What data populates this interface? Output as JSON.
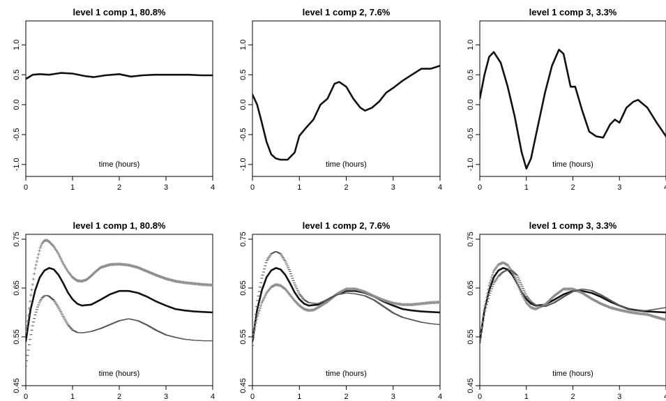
{
  "chart_data": [
    {
      "type": "line",
      "title": "level 1 comp 1, 80.8%",
      "xlabel": "time (hours)",
      "xlim": [
        0,
        4
      ],
      "ylim": [
        -1.2,
        1.4
      ],
      "xticks": [
        0,
        1,
        2,
        3,
        4
      ],
      "yticks": [
        -1.0,
        -0.5,
        0.0,
        0.5,
        1.0
      ],
      "ytick_labels": [
        "-1.0",
        "-0.5",
        "0.0",
        "0.5",
        "1.0"
      ],
      "series": [
        {
          "style": "solid-black",
          "x": [
            0,
            0.15,
            0.3,
            0.5,
            0.75,
            1.0,
            1.25,
            1.45,
            1.7,
            2.0,
            2.25,
            2.5,
            2.75,
            3.0,
            3.25,
            3.5,
            3.75,
            4.0
          ],
          "y": [
            0.43,
            0.5,
            0.51,
            0.5,
            0.53,
            0.52,
            0.48,
            0.46,
            0.49,
            0.51,
            0.47,
            0.49,
            0.5,
            0.5,
            0.5,
            0.5,
            0.49,
            0.49
          ]
        }
      ]
    },
    {
      "type": "line",
      "title": "level 1 comp 2, 7.6%",
      "xlabel": "time (hours)",
      "xlim": [
        0,
        4
      ],
      "ylim": [
        -1.2,
        1.4
      ],
      "xticks": [
        0,
        1,
        2,
        3,
        4
      ],
      "yticks": [
        -1.0,
        -0.5,
        0.0,
        0.5,
        1.0
      ],
      "ytick_labels": [
        "-1.0",
        "-0.5",
        "0.0",
        "0.5",
        "1.0"
      ],
      "series": [
        {
          "style": "solid-black",
          "x": [
            0,
            0.1,
            0.2,
            0.3,
            0.4,
            0.5,
            0.6,
            0.75,
            0.9,
            1.0,
            1.15,
            1.3,
            1.45,
            1.6,
            1.75,
            1.85,
            2.0,
            2.15,
            2.3,
            2.4,
            2.55,
            2.7,
            2.85,
            3.0,
            3.2,
            3.4,
            3.6,
            3.8,
            4.0
          ],
          "y": [
            0.17,
            0.0,
            -0.3,
            -0.62,
            -0.83,
            -0.9,
            -0.92,
            -0.92,
            -0.8,
            -0.52,
            -0.38,
            -0.25,
            0.0,
            0.1,
            0.35,
            0.38,
            0.3,
            0.1,
            -0.05,
            -0.1,
            -0.05,
            0.05,
            0.2,
            0.28,
            0.4,
            0.5,
            0.6,
            0.6,
            0.65
          ]
        }
      ]
    },
    {
      "type": "line",
      "title": "level 1 comp 3, 3.3%",
      "xlabel": "time (hours)",
      "xlim": [
        0,
        4
      ],
      "ylim": [
        -1.2,
        1.4
      ],
      "xticks": [
        0,
        1,
        2,
        3,
        4
      ],
      "yticks": [
        -1.0,
        -0.5,
        0.0,
        0.5,
        1.0
      ],
      "ytick_labels": [
        "-1.0",
        "-0.5",
        "0.0",
        "0.5",
        "1.0"
      ],
      "series": [
        {
          "style": "solid-black",
          "x": [
            0,
            0.1,
            0.2,
            0.3,
            0.45,
            0.6,
            0.75,
            0.9,
            1.0,
            1.1,
            1.25,
            1.4,
            1.55,
            1.7,
            1.8,
            1.95,
            2.05,
            2.2,
            2.35,
            2.5,
            2.65,
            2.8,
            2.9,
            3.0,
            3.15,
            3.3,
            3.4,
            3.6,
            3.8,
            4.0
          ],
          "y": [
            0.1,
            0.5,
            0.8,
            0.88,
            0.7,
            0.3,
            -0.2,
            -0.8,
            -1.07,
            -0.9,
            -0.35,
            0.2,
            0.65,
            0.92,
            0.85,
            0.3,
            0.3,
            -0.1,
            -0.45,
            -0.53,
            -0.55,
            -0.33,
            -0.25,
            -0.3,
            -0.05,
            0.05,
            0.08,
            -0.05,
            -0.3,
            -0.53
          ]
        }
      ]
    },
    {
      "type": "line",
      "title": "level 1 comp 1, 80.8%",
      "xlabel": "time (hours)",
      "xlim": [
        0,
        4
      ],
      "ylim": [
        0.45,
        0.76
      ],
      "xticks": [
        0,
        1,
        2,
        3,
        4
      ],
      "yticks": [
        0.45,
        0.55,
        0.65,
        0.75
      ],
      "ytick_labels": [
        "0.45",
        "0.55",
        "0.65",
        "0.75"
      ],
      "series": [
        {
          "style": "solid-black",
          "x": [
            0,
            0.1,
            0.2,
            0.3,
            0.4,
            0.5,
            0.6,
            0.7,
            0.8,
            0.9,
            1.0,
            1.1,
            1.2,
            1.4,
            1.6,
            1.8,
            2.0,
            2.2,
            2.4,
            2.6,
            2.8,
            3.0,
            3.2,
            3.4,
            3.6,
            3.8,
            4.0
          ],
          "y": [
            0.541,
            0.605,
            0.645,
            0.672,
            0.686,
            0.691,
            0.688,
            0.677,
            0.66,
            0.641,
            0.627,
            0.618,
            0.614,
            0.616,
            0.626,
            0.637,
            0.644,
            0.644,
            0.64,
            0.632,
            0.622,
            0.614,
            0.607,
            0.604,
            0.602,
            0.601,
            0.6
          ]
        },
        {
          "style": "plus-gray",
          "x": [
            0,
            0.05,
            0.1,
            0.15,
            0.2,
            0.25,
            0.3,
            0.35,
            0.4,
            0.45,
            0.5,
            0.6,
            0.7,
            0.8,
            0.9,
            1.0,
            1.1,
            1.2,
            1.3,
            1.4,
            1.5,
            1.6,
            1.8,
            2.0,
            2.2,
            2.4,
            2.6,
            2.8,
            3.0,
            3.2,
            3.4,
            3.6,
            3.8,
            4.0
          ],
          "y": [
            0.56,
            0.59,
            0.63,
            0.66,
            0.69,
            0.71,
            0.73,
            0.742,
            0.747,
            0.748,
            0.745,
            0.735,
            0.72,
            0.7,
            0.684,
            0.672,
            0.665,
            0.664,
            0.667,
            0.675,
            0.684,
            0.692,
            0.698,
            0.699,
            0.697,
            0.692,
            0.684,
            0.676,
            0.669,
            0.664,
            0.661,
            0.659,
            0.657,
            0.656
          ]
        },
        {
          "style": "minus-gray",
          "x": [
            0,
            0.05,
            0.1,
            0.15,
            0.2,
            0.25,
            0.3,
            0.35,
            0.4,
            0.45,
            0.5,
            0.6,
            0.7,
            0.8,
            0.9,
            1.0,
            1.1,
            1.2,
            1.4,
            1.6,
            1.8,
            2.0,
            2.2,
            2.4,
            2.6,
            2.8,
            3.0,
            3.2,
            3.4,
            3.6,
            3.8,
            4.0
          ],
          "y": [
            0.49,
            0.52,
            0.55,
            0.575,
            0.595,
            0.61,
            0.622,
            0.63,
            0.634,
            0.635,
            0.633,
            0.625,
            0.61,
            0.592,
            0.575,
            0.564,
            0.559,
            0.558,
            0.561,
            0.567,
            0.575,
            0.583,
            0.587,
            0.583,
            0.574,
            0.563,
            0.554,
            0.549,
            0.545,
            0.543,
            0.542,
            0.542
          ]
        }
      ]
    },
    {
      "type": "line",
      "title": "level 1 comp 2, 7.6%",
      "xlabel": "time (hours)",
      "xlim": [
        0,
        4
      ],
      "ylim": [
        0.45,
        0.76
      ],
      "xticks": [
        0,
        1,
        2,
        3,
        4
      ],
      "yticks": [
        0.45,
        0.55,
        0.65,
        0.75
      ],
      "ytick_labels": [
        "0.45",
        "0.55",
        "0.65",
        "0.75"
      ],
      "series": [
        {
          "style": "solid-black",
          "x": [
            0,
            0.1,
            0.2,
            0.3,
            0.4,
            0.5,
            0.6,
            0.7,
            0.8,
            0.9,
            1.0,
            1.1,
            1.2,
            1.4,
            1.6,
            1.8,
            2.0,
            2.2,
            2.4,
            2.6,
            2.8,
            3.0,
            3.2,
            3.4,
            3.6,
            3.8,
            4.0
          ],
          "y": [
            0.541,
            0.605,
            0.645,
            0.672,
            0.686,
            0.691,
            0.688,
            0.677,
            0.66,
            0.641,
            0.627,
            0.618,
            0.614,
            0.616,
            0.626,
            0.637,
            0.644,
            0.644,
            0.64,
            0.632,
            0.622,
            0.614,
            0.607,
            0.604,
            0.602,
            0.601,
            0.6
          ]
        },
        {
          "style": "plus-gray",
          "x": [
            0,
            0.1,
            0.2,
            0.3,
            0.4,
            0.5,
            0.6,
            0.7,
            0.8,
            0.9,
            1.0,
            1.1,
            1.2,
            1.3,
            1.4,
            1.6,
            1.8,
            2.0,
            2.2,
            2.4,
            2.6,
            2.8,
            3.0,
            3.2,
            3.4,
            3.6,
            3.8,
            4.0
          ],
          "y": [
            0.548,
            0.59,
            0.62,
            0.64,
            0.652,
            0.657,
            0.655,
            0.648,
            0.636,
            0.624,
            0.614,
            0.607,
            0.604,
            0.605,
            0.61,
            0.622,
            0.638,
            0.648,
            0.648,
            0.642,
            0.633,
            0.625,
            0.619,
            0.616,
            0.616,
            0.618,
            0.62,
            0.621
          ]
        },
        {
          "style": "minus-gray",
          "x": [
            0,
            0.1,
            0.2,
            0.3,
            0.4,
            0.5,
            0.6,
            0.7,
            0.8,
            0.9,
            1.0,
            1.1,
            1.2,
            1.4,
            1.6,
            1.8,
            2.0,
            2.2,
            2.4,
            2.6,
            2.8,
            3.0,
            3.2,
            3.4,
            3.6,
            3.8,
            4.0
          ],
          "y": [
            0.532,
            0.62,
            0.67,
            0.705,
            0.72,
            0.725,
            0.72,
            0.705,
            0.684,
            0.658,
            0.638,
            0.626,
            0.62,
            0.618,
            0.626,
            0.636,
            0.64,
            0.638,
            0.634,
            0.625,
            0.612,
            0.599,
            0.59,
            0.585,
            0.58,
            0.577,
            0.575
          ]
        }
      ]
    },
    {
      "type": "line",
      "title": "level 1 comp 3, 3.3%",
      "xlabel": "time (hours)",
      "xlim": [
        0,
        4
      ],
      "ylim": [
        0.45,
        0.76
      ],
      "xticks": [
        0,
        1,
        2,
        3,
        4
      ],
      "yticks": [
        0.45,
        0.55,
        0.65,
        0.75
      ],
      "ytick_labels": [
        "0.45",
        "0.55",
        "0.65",
        "0.75"
      ],
      "series": [
        {
          "style": "solid-black",
          "x": [
            0,
            0.1,
            0.2,
            0.3,
            0.4,
            0.5,
            0.6,
            0.7,
            0.8,
            0.9,
            1.0,
            1.1,
            1.2,
            1.4,
            1.6,
            1.8,
            2.0,
            2.2,
            2.4,
            2.6,
            2.8,
            3.0,
            3.2,
            3.4,
            3.6,
            3.8,
            4.0
          ],
          "y": [
            0.541,
            0.605,
            0.645,
            0.672,
            0.686,
            0.691,
            0.688,
            0.677,
            0.66,
            0.641,
            0.627,
            0.618,
            0.614,
            0.616,
            0.626,
            0.637,
            0.644,
            0.644,
            0.64,
            0.632,
            0.622,
            0.614,
            0.607,
            0.604,
            0.602,
            0.601,
            0.6
          ]
        },
        {
          "style": "plus-gray",
          "x": [
            0,
            0.1,
            0.2,
            0.3,
            0.4,
            0.5,
            0.6,
            0.7,
            0.8,
            0.9,
            1.0,
            1.1,
            1.2,
            1.4,
            1.6,
            1.8,
            2.0,
            2.2,
            2.4,
            2.6,
            2.8,
            3.0,
            3.2,
            3.4,
            3.6,
            3.8,
            4.0
          ],
          "y": [
            0.545,
            0.61,
            0.655,
            0.685,
            0.698,
            0.702,
            0.697,
            0.683,
            0.662,
            0.638,
            0.62,
            0.61,
            0.607,
            0.616,
            0.634,
            0.648,
            0.648,
            0.64,
            0.628,
            0.618,
            0.61,
            0.605,
            0.601,
            0.598,
            0.596,
            0.59,
            0.585
          ]
        },
        {
          "style": "minus-gray",
          "x": [
            0,
            0.1,
            0.2,
            0.3,
            0.4,
            0.5,
            0.6,
            0.7,
            0.8,
            0.9,
            1.0,
            1.1,
            1.2,
            1.4,
            1.6,
            1.8,
            2.0,
            2.2,
            2.4,
            2.6,
            2.8,
            3.0,
            3.2,
            3.4,
            3.6,
            3.8,
            4.0
          ],
          "y": [
            0.538,
            0.6,
            0.635,
            0.66,
            0.674,
            0.683,
            0.687,
            0.685,
            0.676,
            0.655,
            0.634,
            0.622,
            0.615,
            0.612,
            0.62,
            0.632,
            0.643,
            0.648,
            0.645,
            0.636,
            0.625,
            0.614,
            0.606,
            0.603,
            0.604,
            0.607,
            0.61
          ]
        }
      ]
    }
  ]
}
